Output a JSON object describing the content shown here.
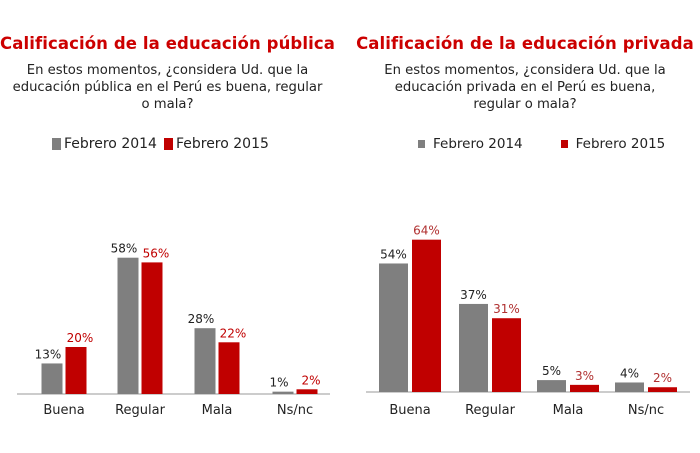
{
  "colors": {
    "series_2014": "#7f7f7f",
    "series_2015": "#c00000",
    "title": "#cc0000"
  },
  "legend": {
    "s1": "Febrero 2014",
    "s2": "Febrero 2015"
  },
  "panels": [
    {
      "title": "Calificación de la educación pública",
      "question": "En estos momentos, ¿considera Ud. que la educación pública en el Perú es buena, regular o mala?"
    },
    {
      "title": "Calificación de la educación privada",
      "question": "En estos momentos, ¿considera Ud. que la educación privada en el Perú es buena, regular o mala?"
    }
  ],
  "chart_data": [
    {
      "type": "bar",
      "title": "Calificación de la educación pública",
      "categories": [
        "Buena",
        "Regular",
        "Mala",
        "Ns/nc"
      ],
      "series": [
        {
          "name": "Febrero 2014",
          "values": [
            13,
            58,
            28,
            1
          ]
        },
        {
          "name": "Febrero 2015",
          "values": [
            20,
            56,
            22,
            2
          ]
        }
      ],
      "value_suffix": "%",
      "ylim": [
        0,
        100
      ],
      "legend": "top",
      "grid": false
    },
    {
      "type": "bar",
      "title": "Calificación de la educación privada",
      "categories": [
        "Buena",
        "Regular",
        "Mala",
        "Ns/nc"
      ],
      "series": [
        {
          "name": "Febrero 2014",
          "values": [
            54,
            37,
            5,
            4
          ]
        },
        {
          "name": "Febrero 2015",
          "values": [
            64,
            31,
            3,
            2
          ]
        }
      ],
      "value_suffix": "%",
      "ylim": [
        0,
        100
      ],
      "legend": "top",
      "grid": false
    }
  ]
}
